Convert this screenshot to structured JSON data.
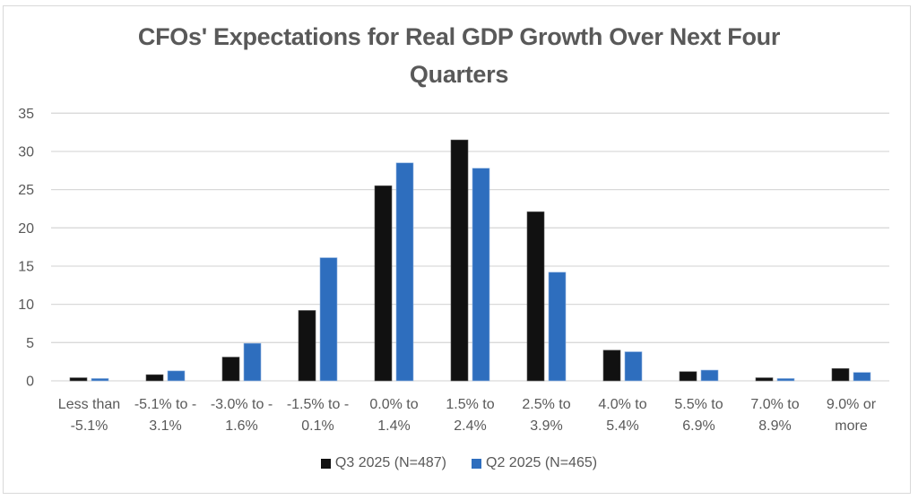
{
  "chart_data": {
    "type": "bar",
    "title": "CFOs' Expectations for Real GDP Growth Over Next Four Quarters",
    "title_lines": [
      "CFOs' Expectations for Real GDP Growth Over Next Four",
      "Quarters"
    ],
    "xlabel": "",
    "ylabel": "",
    "ylim": [
      0,
      35
    ],
    "yticks": [
      0,
      5,
      10,
      15,
      20,
      25,
      30,
      35
    ],
    "grid": true,
    "legend_position": "bottom",
    "categories": [
      "Less than -5.1%",
      "-5.1% to -3.1%",
      "-3.0% to -1.6%",
      "-1.5% to -0.1%",
      "0.0% to 1.4%",
      "1.5% to 2.4%",
      "2.5% to 3.9%",
      "4.0% to 5.4%",
      "5.5% to 6.9%",
      "7.0% to 8.9%",
      "9.0% or more"
    ],
    "category_label_lines": [
      [
        "Less than",
        "-5.1%"
      ],
      [
        "-5.1% to -",
        "3.1%"
      ],
      [
        "-3.0% to -",
        "1.6%"
      ],
      [
        "-1.5% to -",
        "0.1%"
      ],
      [
        "0.0% to",
        "1.4%"
      ],
      [
        "1.5% to",
        "2.4%"
      ],
      [
        "2.5% to",
        "3.9%"
      ],
      [
        "4.0% to",
        "5.4%"
      ],
      [
        "5.5% to",
        "6.9%"
      ],
      [
        "7.0% to",
        "8.9%"
      ],
      [
        "9.0% or",
        "more"
      ]
    ],
    "series": [
      {
        "name": "Q3 2025 (N=487)",
        "color": "#111111",
        "values": [
          0.4,
          0.8,
          3.1,
          9.2,
          25.5,
          31.5,
          22.1,
          4.0,
          1.2,
          0.4,
          1.6
        ]
      },
      {
        "name": "Q2 2025 (N=465)",
        "color": "#2e6ebe",
        "values": [
          0.3,
          1.3,
          4.9,
          16.1,
          28.5,
          27.8,
          14.2,
          3.8,
          1.4,
          0.3,
          1.1
        ]
      }
    ]
  }
}
